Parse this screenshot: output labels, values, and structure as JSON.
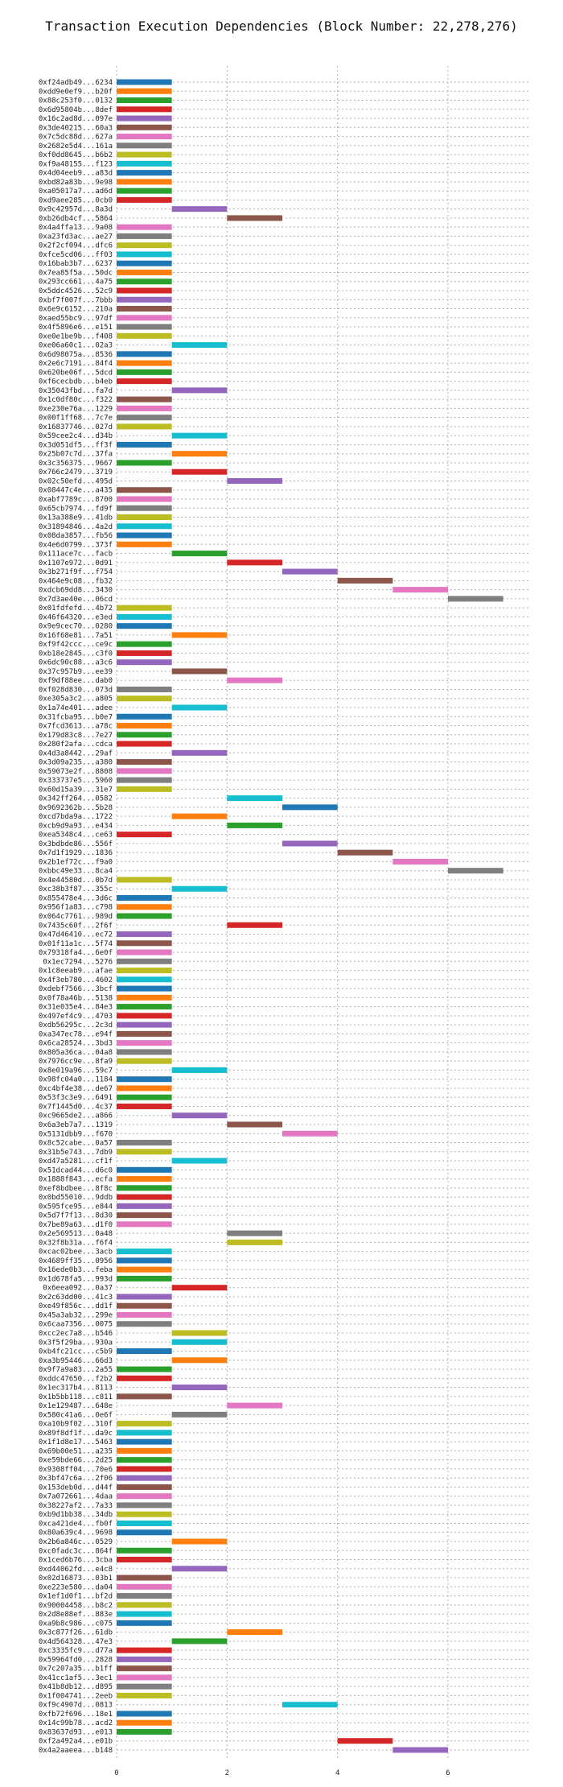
{
  "chart_data": {
    "type": "bar",
    "orientation": "horizontal",
    "title": "Transaction Execution Dependencies (Block Number: 22,278,276)",
    "xlabel": "",
    "ylabel": "",
    "xlim": [
      0,
      7.5
    ],
    "xticks": [
      0,
      2,
      4,
      6
    ],
    "grid": true,
    "palette": [
      "#1f77b4",
      "#ff7f0e",
      "#2ca02c",
      "#d62728",
      "#9467bd",
      "#8c564b",
      "#e377c2",
      "#7f7f7f",
      "#bcbd22",
      "#17becf"
    ],
    "transactions": [
      {
        "label": "0xf24adb49...6234",
        "start": 0,
        "end": 1
      },
      {
        "label": "0xdd9e0ef9...b20f",
        "start": 0,
        "end": 1
      },
      {
        "label": "0x88c253f0...0132",
        "start": 0,
        "end": 1
      },
      {
        "label": "0x6d95804b...8def",
        "start": 0,
        "end": 1
      },
      {
        "label": "0x16c2ad8d...097e",
        "start": 0,
        "end": 1
      },
      {
        "label": "0x3de40215...60a3",
        "start": 0,
        "end": 1
      },
      {
        "label": "0x7c5dc88d...627a",
        "start": 0,
        "end": 1
      },
      {
        "label": "0x2682e5d4...161a",
        "start": 0,
        "end": 1
      },
      {
        "label": "0xf0dd8645...b6b2",
        "start": 0,
        "end": 1
      },
      {
        "label": "0xf9a48155...f123",
        "start": 0,
        "end": 1
      },
      {
        "label": "0x4d04eeb9...a83d",
        "start": 0,
        "end": 1
      },
      {
        "label": "0xbd82a83b...9e98",
        "start": 0,
        "end": 1
      },
      {
        "label": "0xa05017a7...ad6d",
        "start": 0,
        "end": 1
      },
      {
        "label": "0xd9aee285...0cb0",
        "start": 0,
        "end": 1
      },
      {
        "label": "0x9c42957d...8a3d",
        "start": 1,
        "end": 2
      },
      {
        "label": "0xb26db4cf...5864",
        "start": 2,
        "end": 3
      },
      {
        "label": "0x4a4ffa13...9a08",
        "start": 0,
        "end": 1
      },
      {
        "label": "0xa23fd3ac...ae27",
        "start": 0,
        "end": 1
      },
      {
        "label": "0x2f2cf094...dfc6",
        "start": 0,
        "end": 1
      },
      {
        "label": "0xfce5cd06...ff03",
        "start": 0,
        "end": 1
      },
      {
        "label": "0x16bab3b7...6237",
        "start": 0,
        "end": 1
      },
      {
        "label": "0x7ea85f5a...50dc",
        "start": 0,
        "end": 1
      },
      {
        "label": "0x293cc661...4a75",
        "start": 0,
        "end": 1
      },
      {
        "label": "0x5ddc4526...52c9",
        "start": 0,
        "end": 1
      },
      {
        "label": "0xbf7f007f...7bbb",
        "start": 0,
        "end": 1
      },
      {
        "label": "0x6e9c6152...210a",
        "start": 0,
        "end": 1
      },
      {
        "label": "0xaed55bc9...97df",
        "start": 0,
        "end": 1
      },
      {
        "label": "0x4f5896e6...e151",
        "start": 0,
        "end": 1
      },
      {
        "label": "0xe0e1be9b...f408",
        "start": 0,
        "end": 1
      },
      {
        "label": "0xe06a60c1...02a3",
        "start": 1,
        "end": 2
      },
      {
        "label": "0x6d98075a...8536",
        "start": 0,
        "end": 1
      },
      {
        "label": "0x2e6c7191...84f4",
        "start": 0,
        "end": 1
      },
      {
        "label": "0x620be06f...5dcd",
        "start": 0,
        "end": 1
      },
      {
        "label": "0xf6cecbdb...b4eb",
        "start": 0,
        "end": 1
      },
      {
        "label": "0x35043fbd...fa7d",
        "start": 1,
        "end": 2
      },
      {
        "label": "0x1c0df80c...f322",
        "start": 0,
        "end": 1
      },
      {
        "label": "0xe230e76a...1229",
        "start": 0,
        "end": 1
      },
      {
        "label": "0x00f1ff68...7c7e",
        "start": 0,
        "end": 1
      },
      {
        "label": "0x16837746...027d",
        "start": 0,
        "end": 1
      },
      {
        "label": "0x59cee2c4...d34b",
        "start": 1,
        "end": 2
      },
      {
        "label": "0x3d051df5...ff3f",
        "start": 0,
        "end": 1
      },
      {
        "label": "0x25b07c7d...37fa",
        "start": 1,
        "end": 2
      },
      {
        "label": "0x3c356375...9667",
        "start": 0,
        "end": 1
      },
      {
        "label": "0x766c2479...3719",
        "start": 1,
        "end": 2
      },
      {
        "label": "0x02c50efd...495d",
        "start": 2,
        "end": 3
      },
      {
        "label": "0x08447c4e...a435",
        "start": 0,
        "end": 1
      },
      {
        "label": "0xabf7789c...8700",
        "start": 0,
        "end": 1
      },
      {
        "label": "0x65cb7974...fd9f",
        "start": 0,
        "end": 1
      },
      {
        "label": "0x13a388e9...41db",
        "start": 0,
        "end": 1
      },
      {
        "label": "0x31894846...4a2d",
        "start": 0,
        "end": 1
      },
      {
        "label": "0x08da3857...fb56",
        "start": 0,
        "end": 1
      },
      {
        "label": "0x4e6d0799...373f",
        "start": 0,
        "end": 1
      },
      {
        "label": "0x111ace7c...facb",
        "start": 1,
        "end": 2
      },
      {
        "label": "0x1107e972...0d91",
        "start": 2,
        "end": 3
      },
      {
        "label": "0x3b271f9f...f754",
        "start": 3,
        "end": 4
      },
      {
        "label": "0x464e9c08...fb32",
        "start": 4,
        "end": 5
      },
      {
        "label": "0xdcb69dd8...3430",
        "start": 5,
        "end": 6
      },
      {
        "label": "0x7d3ae40e...06cd",
        "start": 6,
        "end": 7
      },
      {
        "label": "0x01fdfefd...4b72",
        "start": 0,
        "end": 1
      },
      {
        "label": "0x46f64320...e3ed",
        "start": 0,
        "end": 1
      },
      {
        "label": "0x9e9cec70...0280",
        "start": 0,
        "end": 1
      },
      {
        "label": "0x16f68e81...7a51",
        "start": 1,
        "end": 2
      },
      {
        "label": "0xf9f42ccc...ce9c",
        "start": 0,
        "end": 1
      },
      {
        "label": "0xb18e2845...c3f0",
        "start": 0,
        "end": 1
      },
      {
        "label": "0x6dc90c88...a3c6",
        "start": 0,
        "end": 1
      },
      {
        "label": "0x37c957b9...ee39",
        "start": 1,
        "end": 2
      },
      {
        "label": "0xf9df88ee...dab0",
        "start": 2,
        "end": 3
      },
      {
        "label": "0xf028d830...073d",
        "start": 0,
        "end": 1
      },
      {
        "label": "0xe305a3c2...a805",
        "start": 0,
        "end": 1
      },
      {
        "label": "0x1a74e401...adee",
        "start": 1,
        "end": 2
      },
      {
        "label": "0x31fcba95...b0e7",
        "start": 0,
        "end": 1
      },
      {
        "label": "0x7fcd3613...a78c",
        "start": 0,
        "end": 1
      },
      {
        "label": "0x179d83c8...7e27",
        "start": 0,
        "end": 1
      },
      {
        "label": "0x280f2afa...cdca",
        "start": 0,
        "end": 1
      },
      {
        "label": "0x4d3a8442...29af",
        "start": 1,
        "end": 2
      },
      {
        "label": "0x3d09a235...a380",
        "start": 0,
        "end": 1
      },
      {
        "label": "0x59073e2f...8808",
        "start": 0,
        "end": 1
      },
      {
        "label": "0x333737e5...5960",
        "start": 0,
        "end": 1
      },
      {
        "label": "0x60d15a39...31e7",
        "start": 0,
        "end": 1
      },
      {
        "label": "0x342ff264...0582",
        "start": 2,
        "end": 3
      },
      {
        "label": "0x9692362b...5b28",
        "start": 3,
        "end": 4
      },
      {
        "label": "0xcd7bda9a...1722",
        "start": 1,
        "end": 2
      },
      {
        "label": "0xcb9d9a93...e434",
        "start": 2,
        "end": 3
      },
      {
        "label": "0xea5348c4...ce63",
        "start": 0,
        "end": 1
      },
      {
        "label": "0x3bdbde86...556f",
        "start": 3,
        "end": 4
      },
      {
        "label": "0x7d1f1929...1836",
        "start": 4,
        "end": 5
      },
      {
        "label": "0x2b1ef72c...f9a0",
        "start": 5,
        "end": 6
      },
      {
        "label": "0xbbc49e33...8ca4",
        "start": 6,
        "end": 7
      },
      {
        "label": "0x4e44580d...0b7d",
        "start": 0,
        "end": 1
      },
      {
        "label": "0xc38b3f87...355c",
        "start": 1,
        "end": 2
      },
      {
        "label": "0x855478e4...3d6c",
        "start": 0,
        "end": 1
      },
      {
        "label": "0x956f1a83...c798",
        "start": 0,
        "end": 1
      },
      {
        "label": "0x064c7761...989d",
        "start": 0,
        "end": 1
      },
      {
        "label": "0x7435c60f...2f6f",
        "start": 2,
        "end": 3
      },
      {
        "label": "0x47d46410...ec72",
        "start": 0,
        "end": 1
      },
      {
        "label": "0x01f11a1c...5f74",
        "start": 0,
        "end": 1
      },
      {
        "label": "0x79318fa4...6e0f",
        "start": 0,
        "end": 1
      },
      {
        "label": "0x1ec7294...5276",
        "start": 0,
        "end": 1
      },
      {
        "label": "0x1c8eeab9...afae",
        "start": 0,
        "end": 1
      },
      {
        "label": "0x4f3eb780...4602",
        "start": 0,
        "end": 1
      },
      {
        "label": "0xdebf7566...3bcf",
        "start": 0,
        "end": 1
      },
      {
        "label": "0x0f78a46b...5138",
        "start": 0,
        "end": 1
      },
      {
        "label": "0x31e035e4...84e3",
        "start": 0,
        "end": 1
      },
      {
        "label": "0x497ef4c9...4703",
        "start": 0,
        "end": 1
      },
      {
        "label": "0xdb56295c...2c3d",
        "start": 0,
        "end": 1
      },
      {
        "label": "0xa347ec78...e94f",
        "start": 0,
        "end": 1
      },
      {
        "label": "0x6ca28524...3bd3",
        "start": 0,
        "end": 1
      },
      {
        "label": "0x805a36ca...04a8",
        "start": 0,
        "end": 1
      },
      {
        "label": "0x7976cc9e...8fa9",
        "start": 0,
        "end": 1
      },
      {
        "label": "0x8e019a96...59c7",
        "start": 1,
        "end": 2
      },
      {
        "label": "0x98fc04a0...1184",
        "start": 0,
        "end": 1
      },
      {
        "label": "0xc4bf4e38...de67",
        "start": 0,
        "end": 1
      },
      {
        "label": "0x53f3c3e9...6491",
        "start": 0,
        "end": 1
      },
      {
        "label": "0x7f1445d0...4c37",
        "start": 0,
        "end": 1
      },
      {
        "label": "0xc9665de2...a866",
        "start": 1,
        "end": 2
      },
      {
        "label": "0x6a3eb7a7...1319",
        "start": 2,
        "end": 3
      },
      {
        "label": "0x5131dbb9...f670",
        "start": 3,
        "end": 4
      },
      {
        "label": "0x8c52cabe...0a57",
        "start": 0,
        "end": 1
      },
      {
        "label": "0x31b5e743...7db9",
        "start": 0,
        "end": 1
      },
      {
        "label": "0xd47a5281...cf1f",
        "start": 1,
        "end": 2
      },
      {
        "label": "0x51dcad44...d6c0",
        "start": 0,
        "end": 1
      },
      {
        "label": "0x1888f843...ecfa",
        "start": 0,
        "end": 1
      },
      {
        "label": "0xef8bdbee...8f8c",
        "start": 0,
        "end": 1
      },
      {
        "label": "0x0bd55010...9ddb",
        "start": 0,
        "end": 1
      },
      {
        "label": "0x595fce95...e844",
        "start": 0,
        "end": 1
      },
      {
        "label": "0x5d7f7f13...8d30",
        "start": 0,
        "end": 1
      },
      {
        "label": "0x7be89a63...d1f0",
        "start": 0,
        "end": 1
      },
      {
        "label": "0x2e569513...0a48",
        "start": 2,
        "end": 3
      },
      {
        "label": "0x32f8b31a...f6f4",
        "start": 2,
        "end": 3
      },
      {
        "label": "0xcac02bee...3acb",
        "start": 0,
        "end": 1
      },
      {
        "label": "0x4689ff35...0956",
        "start": 0,
        "end": 1
      },
      {
        "label": "0x16ede0b3...feba",
        "start": 0,
        "end": 1
      },
      {
        "label": "0x1d678fa5...993d",
        "start": 0,
        "end": 1
      },
      {
        "label": "0x6eea092...0a37",
        "start": 1,
        "end": 2
      },
      {
        "label": "0x2c63dd00...41c3",
        "start": 0,
        "end": 1
      },
      {
        "label": "0xe49f856c...dd1f",
        "start": 0,
        "end": 1
      },
      {
        "label": "0x45a3ab32...299e",
        "start": 0,
        "end": 1
      },
      {
        "label": "0x6caa7356...0075",
        "start": 0,
        "end": 1
      },
      {
        "label": "0xcc2ec7a8...b546",
        "start": 1,
        "end": 2
      },
      {
        "label": "0x3f5f29ba...930a",
        "start": 1,
        "end": 2
      },
      {
        "label": "0xb4fc21cc...c5b9",
        "start": 0,
        "end": 1
      },
      {
        "label": "0xa3b95446...66d3",
        "start": 1,
        "end": 2
      },
      {
        "label": "0x9f7a9a83...2a55",
        "start": 0,
        "end": 1
      },
      {
        "label": "0xddc47650...f2b2",
        "start": 0,
        "end": 1
      },
      {
        "label": "0x1ec317b4...8113",
        "start": 1,
        "end": 2
      },
      {
        "label": "0x1b5bb118...c811",
        "start": 0,
        "end": 1
      },
      {
        "label": "0x1e129487...648e",
        "start": 2,
        "end": 3
      },
      {
        "label": "0x580c41a6...0e6f",
        "start": 1,
        "end": 2
      },
      {
        "label": "0xa10b9f02...310f",
        "start": 0,
        "end": 1
      },
      {
        "label": "0x89f8df1f...da9c",
        "start": 0,
        "end": 1
      },
      {
        "label": "0x1f1d8e17...5463",
        "start": 0,
        "end": 1
      },
      {
        "label": "0x69b00e51...a235",
        "start": 0,
        "end": 1
      },
      {
        "label": "0xe59bde66...2d25",
        "start": 0,
        "end": 1
      },
      {
        "label": "0x9308ff04...70e6",
        "start": 0,
        "end": 1
      },
      {
        "label": "0x3bf47c6a...2f06",
        "start": 0,
        "end": 1
      },
      {
        "label": "0x153deb0d...d44f",
        "start": 0,
        "end": 1
      },
      {
        "label": "0x7a072661...4daa",
        "start": 0,
        "end": 1
      },
      {
        "label": "0x38227af2...7a33",
        "start": 0,
        "end": 1
      },
      {
        "label": "0xb9d1bb38...34db",
        "start": 0,
        "end": 1
      },
      {
        "label": "0xca421de4...fb0f",
        "start": 0,
        "end": 1
      },
      {
        "label": "0x80a639c4...9698",
        "start": 0,
        "end": 1
      },
      {
        "label": "0x2b6a846c...0529",
        "start": 1,
        "end": 2
      },
      {
        "label": "0xc0fadc3c...864f",
        "start": 0,
        "end": 1
      },
      {
        "label": "0x1ced6b76...3cba",
        "start": 0,
        "end": 1
      },
      {
        "label": "0xd44062fd...e4c8",
        "start": 1,
        "end": 2
      },
      {
        "label": "0x02d16873...03b1",
        "start": 0,
        "end": 1
      },
      {
        "label": "0xe223e580...da04",
        "start": 0,
        "end": 1
      },
      {
        "label": "0x1ef1d0f1...bf2d",
        "start": 0,
        "end": 1
      },
      {
        "label": "0x90004458...b8c2",
        "start": 0,
        "end": 1
      },
      {
        "label": "0x2d8e88ef...883e",
        "start": 0,
        "end": 1
      },
      {
        "label": "0xa9b8c986...c075",
        "start": 0,
        "end": 1
      },
      {
        "label": "0x3c877f26...61db",
        "start": 2,
        "end": 3
      },
      {
        "label": "0x4d564328...47e3",
        "start": 1,
        "end": 2
      },
      {
        "label": "0xc3335fc9...d77a",
        "start": 0,
        "end": 1
      },
      {
        "label": "0x59964fd0...2828",
        "start": 0,
        "end": 1
      },
      {
        "label": "0x7c207a35...b1ff",
        "start": 0,
        "end": 1
      },
      {
        "label": "0x41cc1af5...3ec1",
        "start": 0,
        "end": 1
      },
      {
        "label": "0x41b8db12...d895",
        "start": 0,
        "end": 1
      },
      {
        "label": "0x1f004741...2eeb",
        "start": 0,
        "end": 1
      },
      {
        "label": "0xf9c4907d...0813",
        "start": 3,
        "end": 4
      },
      {
        "label": "0xfb72f696...18e1",
        "start": 0,
        "end": 1
      },
      {
        "label": "0x14c99b78...acd2",
        "start": 0,
        "end": 1
      },
      {
        "label": "0x83637d93...e013",
        "start": 0,
        "end": 1
      },
      {
        "label": "0xf2a492a4...e01b",
        "start": 4,
        "end": 5
      },
      {
        "label": "0x4a2aaeea...b148",
        "start": 5,
        "end": 6
      }
    ]
  }
}
